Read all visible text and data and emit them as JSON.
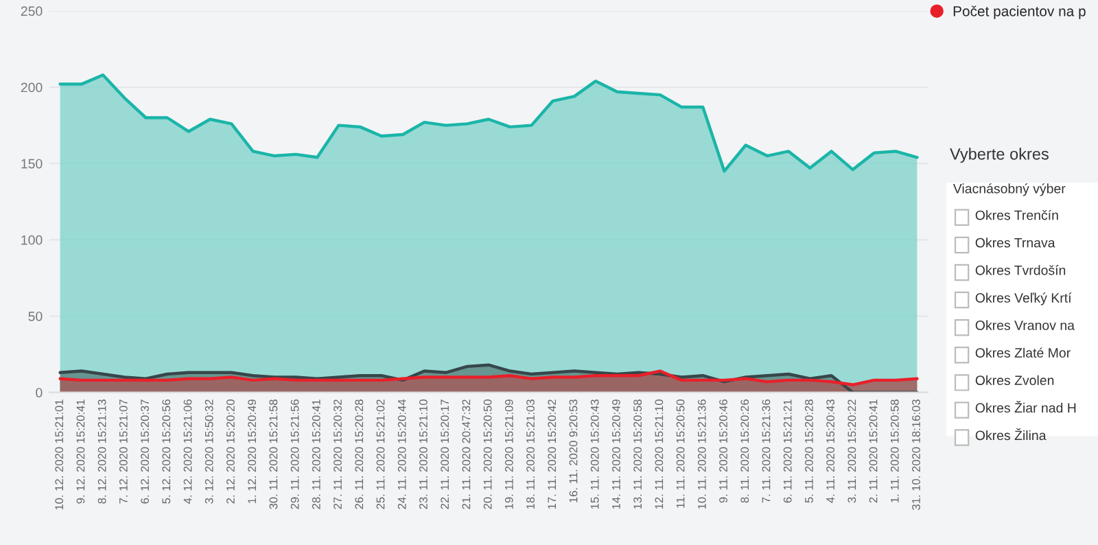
{
  "chart_data": {
    "type": "area",
    "categories": [
      "10. 12. 2020 15:21:01",
      "9. 12. 2020 15:20:41",
      "8. 12. 2020 15:21:13",
      "7. 12. 2020 15:21:07",
      "6. 12. 2020 15:20:37",
      "5. 12. 2020 15:20:56",
      "4. 12. 2020 15:21:06",
      "3. 12. 2020 15:50:32",
      "2. 12. 2020 15:20:20",
      "1. 12. 2020 15:20:49",
      "30. 11. 2020 15:21:58",
      "29. 11. 2020 15:21:56",
      "28. 11. 2020 15:20:41",
      "27. 11. 2020 15:20:32",
      "26. 11. 2020 15:20:28",
      "25. 11. 2020 15:21:02",
      "24. 11. 2020 15:20:44",
      "23. 11. 2020 15:21:10",
      "22. 11. 2020 15:20:17",
      "21. 11. 2020 20:47:32",
      "20. 11. 2020 15:20:50",
      "19. 11. 2020 15:21:09",
      "18. 11. 2020 15:21:03",
      "17. 11. 2020 15:20:42",
      "16. 11. 2020 9:20:53",
      "15. 11. 2020 15:20:43",
      "14. 11. 2020 15:20:49",
      "13. 11. 2020 15:20:58",
      "12. 11. 2020 15:21:10",
      "11. 11. 2020 15:20:50",
      "10. 11. 2020 15:21:36",
      "9. 11. 2020 15:20:46",
      "8. 11. 2020 15:20:26",
      "7. 11. 2020 15:21:36",
      "6. 11. 2020 15:21:21",
      "5. 11. 2020 15:20:28",
      "4. 11. 2020 15:20:43",
      "3. 11. 2020 15:20:22",
      "2. 11. 2020 15:20:41",
      "1. 11. 2020 15:20:58",
      "31. 10. 2020 18:16:03"
    ],
    "series": [
      {
        "color": "#1ab5a8",
        "values": [
          202,
          202,
          208,
          193,
          180,
          180,
          171,
          179,
          176,
          158,
          155,
          156,
          154,
          175,
          174,
          168,
          169,
          177,
          175,
          176,
          179,
          174,
          175,
          191,
          194,
          204,
          197,
          196,
          195,
          187,
          187,
          145,
          162,
          155,
          158,
          147,
          158,
          146,
          157,
          158,
          154
        ]
      },
      {
        "color": "#37474a",
        "values": [
          13,
          14,
          12,
          10,
          9,
          12,
          13,
          13,
          13,
          11,
          10,
          10,
          9,
          10,
          11,
          11,
          8,
          14,
          13,
          17,
          18,
          14,
          12,
          13,
          14,
          13,
          12,
          13,
          12,
          10,
          11,
          7,
          10,
          11,
          12,
          9,
          11,
          0,
          0,
          0,
          0
        ]
      },
      {
        "name": "Počet pacientov na p",
        "color": "#e8202a",
        "values": [
          9,
          8,
          8,
          8,
          8,
          8,
          9,
          9,
          10,
          8,
          9,
          8,
          8,
          8,
          8,
          8,
          9,
          10,
          10,
          10,
          10,
          11,
          9,
          10,
          10,
          11,
          11,
          11,
          14,
          8,
          8,
          8,
          9,
          7,
          8,
          8,
          7,
          5,
          8,
          8,
          9
        ]
      }
    ],
    "ylim": [
      0,
      250
    ],
    "yticks": [
      0,
      50,
      100,
      150,
      200,
      250
    ],
    "grid": "y",
    "legend": "top right",
    "annotations": [
      "Vyberte okres",
      "Viacnásobný výber",
      "Okres Trenčín",
      "Okres Trnava",
      "Okres Tvrdošín",
      "Okres Veľký Krtí",
      "Okres Vranov na",
      "Okres Zlaté Mor",
      "Okres Zvolen",
      "Okres Žiar nad H",
      "Okres Žilina"
    ]
  }
}
